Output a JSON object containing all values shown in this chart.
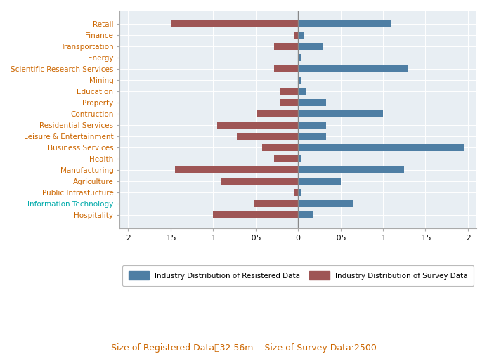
{
  "categories": [
    "Retail",
    "Finance",
    "Transportation",
    "Energy",
    "Scientific Research Services",
    "Mining",
    "Education",
    "Property",
    "Contruction",
    "Residential Services",
    "Leisure & Entertainment",
    "Business Services",
    "Health",
    "Manufacturing",
    "Agriculture",
    "Public Infrastucture",
    "Information Technology",
    "Hospitality"
  ],
  "registered": [
    0.11,
    0.007,
    0.03,
    0.003,
    0.13,
    0.003,
    0.01,
    0.033,
    0.1,
    0.033,
    0.033,
    0.195,
    0.003,
    0.125,
    0.05,
    0.004,
    0.065,
    0.018
  ],
  "survey": [
    -0.15,
    -0.005,
    -0.028,
    -0.0,
    -0.028,
    -0.0,
    -0.022,
    -0.022,
    -0.048,
    -0.095,
    -0.072,
    -0.042,
    -0.028,
    -0.145,
    -0.09,
    -0.004,
    -0.052,
    -0.1
  ],
  "registered_color": "#4e7ea4",
  "survey_color": "#9e5555",
  "plot_bg_color": "#e8eef3",
  "fig_bg_color": "#ffffff",
  "xlim": [
    -0.21,
    0.21
  ],
  "xticks": [
    -0.2,
    -0.15,
    -0.1,
    -0.05,
    0,
    0.05,
    0.1,
    0.15,
    0.2
  ],
  "xtick_labels": [
    ".2",
    ".15",
    ".1",
    ".05",
    "0",
    ".05",
    ".1",
    ".15",
    ".2"
  ],
  "legend_label_reg": "Industry Distribution of Resistered Data",
  "legend_label_surv": "Industry Distribution of Survey Data",
  "footnote": "Size of Registered Data：32.56m    Size of Survey Data:2500",
  "ytick_color_odd": "#cc6600",
  "ytick_color_even": "#cc6600",
  "label_fontsize": 7.5,
  "tick_fontsize": 8
}
